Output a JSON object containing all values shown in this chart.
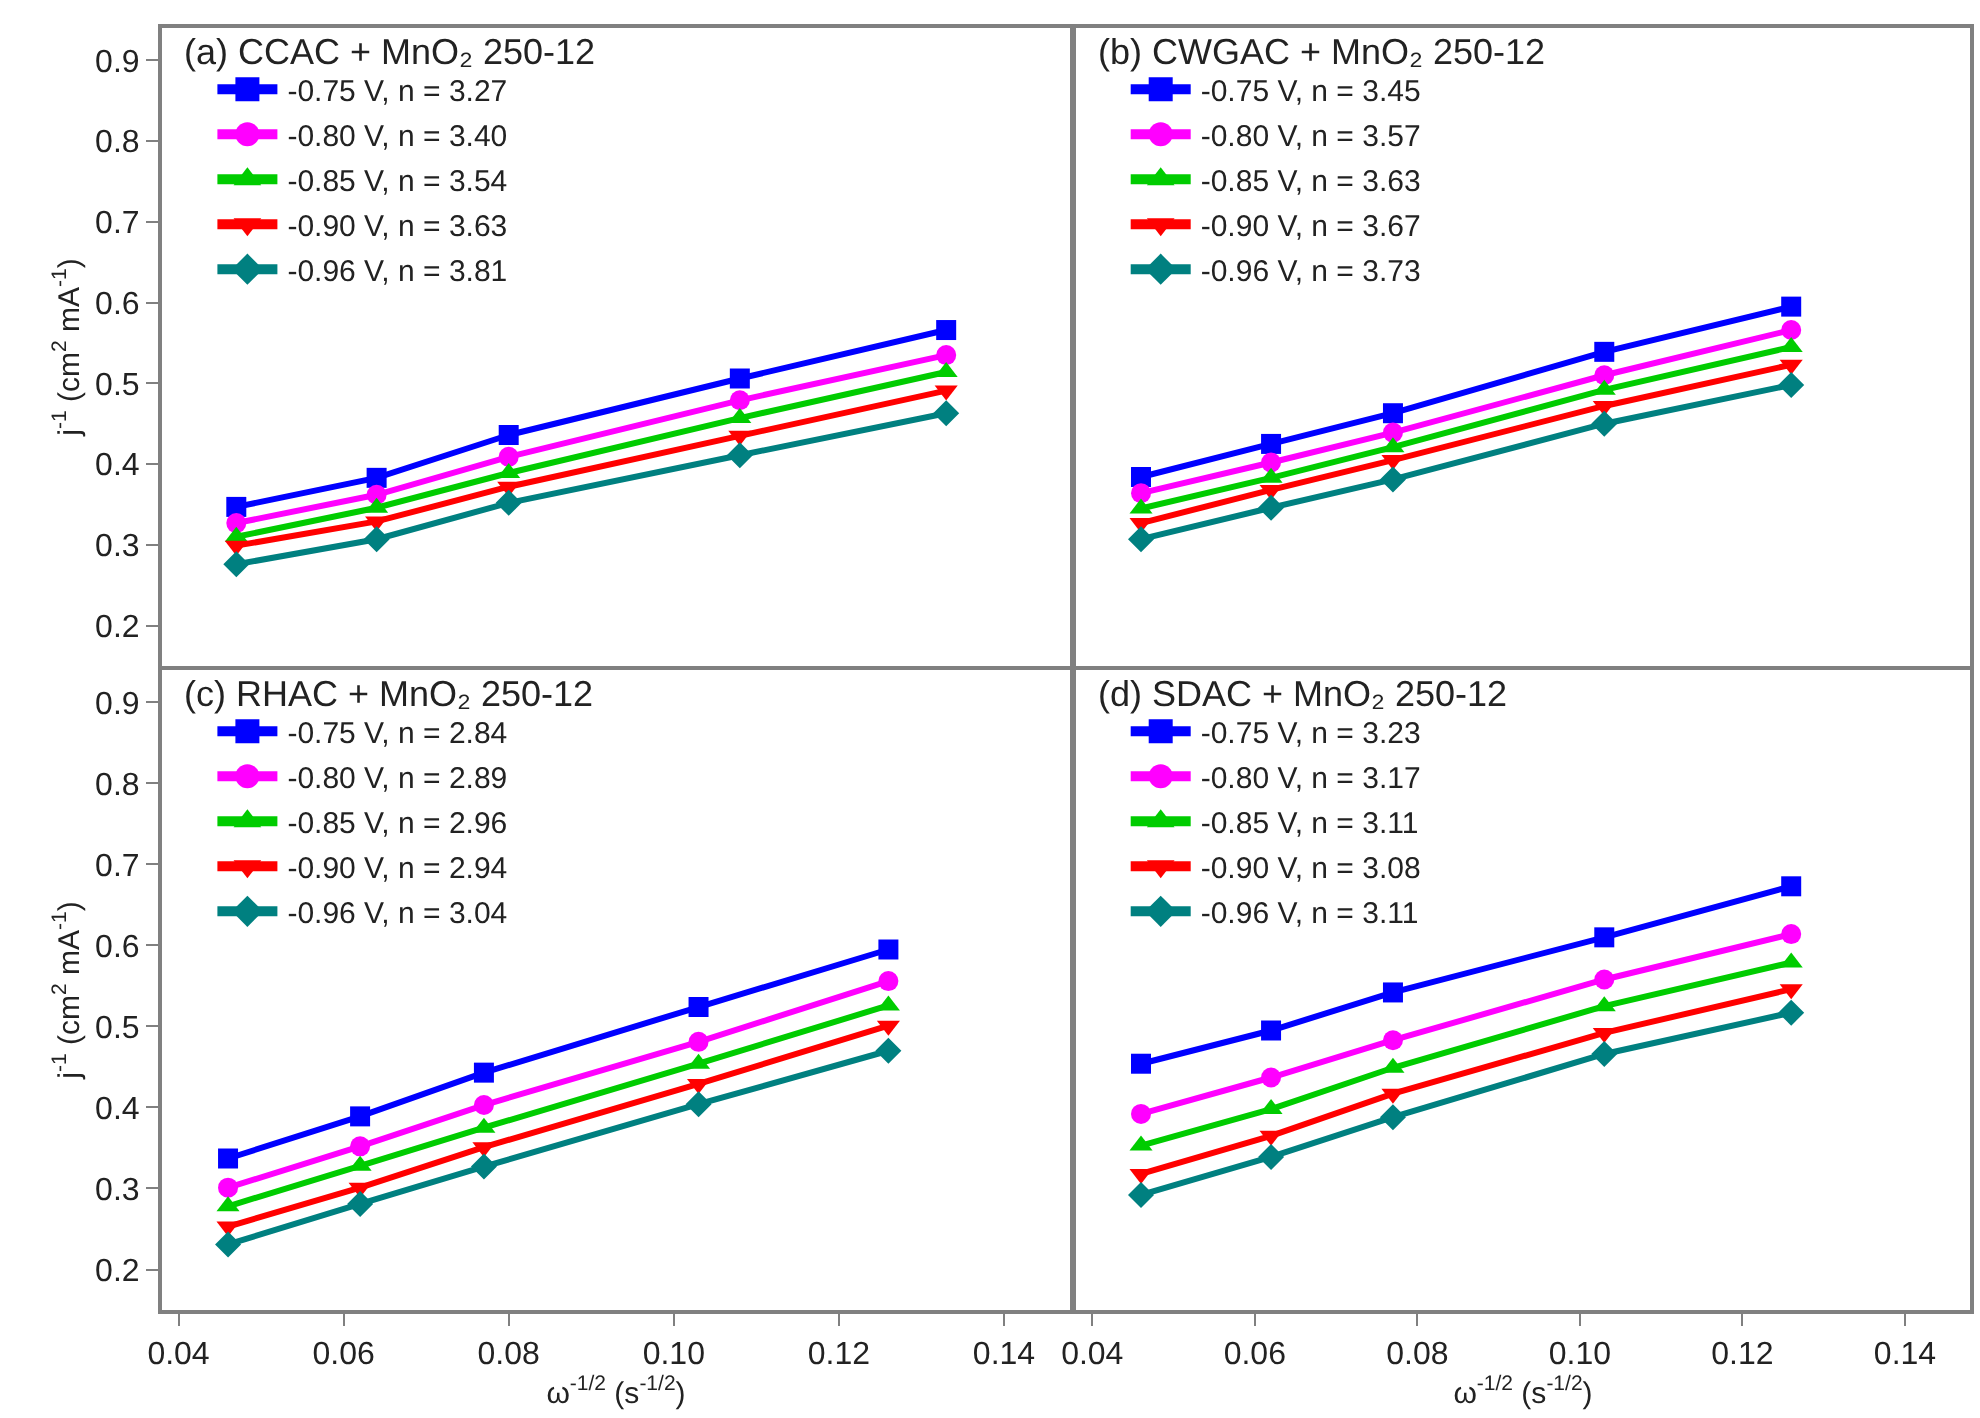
{
  "chart_data": [
    {
      "type": "line",
      "title": "(a) CCAC + MnO₂ 250-12",
      "ylabel": "j$^{-1}$ (cm$^{2}$ mA$^{-1}$)",
      "x": [
        0.047,
        0.064,
        0.08,
        0.108,
        0.133
      ],
      "xlim": [
        0.038,
        0.148
      ],
      "ylim": [
        0.15,
        0.94
      ],
      "yticks": [
        0.2,
        0.3,
        0.4,
        0.5,
        0.6,
        0.7,
        0.8,
        0.9
      ],
      "tick_labels": "y",
      "legend": "top left",
      "line_style": "solid",
      "series": [
        {
          "name": "-0.75 V, n = 3.27",
          "color": "#0000ff",
          "marker": "square",
          "values": [
            0.347,
            0.383,
            0.436,
            0.506,
            0.566
          ]
        },
        {
          "name": "-0.80 V, n = 3.40",
          "color": "#ff00ff",
          "marker": "circle",
          "values": [
            0.327,
            0.362,
            0.409,
            0.479,
            0.535
          ]
        },
        {
          "name": "-0.85 V, n = 3.54",
          "color": "#00cc00",
          "marker": "triangle",
          "values": [
            0.31,
            0.346,
            0.389,
            0.457,
            0.514
          ]
        },
        {
          "name": "-0.90 V, n = 3.63",
          "color": "#ff0000",
          "marker": "triangle-down",
          "values": [
            0.299,
            0.329,
            0.372,
            0.435,
            0.491
          ]
        },
        {
          "name": "-0.96 V, n = 3.81",
          "color": "#008080",
          "marker": "diamond",
          "values": [
            0.276,
            0.307,
            0.352,
            0.411,
            0.463
          ]
        }
      ]
    },
    {
      "type": "line",
      "title": "(b) CWGAC + MnO₂ 250-12",
      "x": [
        0.046,
        0.062,
        0.077,
        0.103,
        0.126
      ],
      "xlim": [
        0.038,
        0.148
      ],
      "ylim": [
        0.15,
        0.94
      ],
      "tick_labels": false,
      "legend": "top left",
      "line_style": "solid",
      "series": [
        {
          "name": "-0.75 V, n = 3.45",
          "color": "#0000ff",
          "marker": "square",
          "values": [
            0.384,
            0.425,
            0.463,
            0.539,
            0.595
          ]
        },
        {
          "name": "-0.80 V, n = 3.57",
          "color": "#ff00ff",
          "marker": "circle",
          "values": [
            0.364,
            0.402,
            0.439,
            0.51,
            0.566
          ]
        },
        {
          "name": "-0.85 V, n = 3.63",
          "color": "#00cc00",
          "marker": "triangle",
          "values": [
            0.345,
            0.383,
            0.421,
            0.492,
            0.545
          ]
        },
        {
          "name": "-0.90 V, n = 3.67",
          "color": "#ff0000",
          "marker": "triangle-down",
          "values": [
            0.327,
            0.368,
            0.405,
            0.472,
            0.523
          ]
        },
        {
          "name": "-0.96 V, n = 3.73",
          "color": "#008080",
          "marker": "diamond",
          "values": [
            0.307,
            0.346,
            0.381,
            0.45,
            0.498
          ]
        }
      ]
    },
    {
      "type": "line",
      "title": "(c) RHAC + MnO₂ 250-12",
      "xlabel": "ω$^{-1/2}$ (s$^{-1/2}$)",
      "ylabel": "j$^{-1}$ (cm$^{2}$ mA$^{-1}$)",
      "x": [
        0.046,
        0.062,
        0.077,
        0.103,
        0.126
      ],
      "xlim": [
        0.038,
        0.148
      ],
      "ylim": [
        0.15,
        0.94
      ],
      "xticks": [
        0.04,
        0.06,
        0.08,
        {
          "value": 0.1,
          "label": "0.10"
        },
        0.12,
        0.14
      ],
      "yticks": [
        0.2,
        0.3,
        0.4,
        0.5,
        0.6,
        0.7,
        0.8,
        0.9
      ],
      "legend": "top left",
      "line_style": "solid",
      "series": [
        {
          "name": "-0.75 V, n = 2.84",
          "color": "#0000ff",
          "marker": "square",
          "values": [
            0.337,
            0.389,
            0.443,
            0.524,
            0.595
          ]
        },
        {
          "name": "-0.80 V, n = 2.89",
          "color": "#ff00ff",
          "marker": "circle",
          "values": [
            0.301,
            0.352,
            0.403,
            0.481,
            0.556
          ]
        },
        {
          "name": "-0.85 V, n = 2.96",
          "color": "#00cc00",
          "marker": "triangle",
          "values": [
            0.278,
            0.328,
            0.375,
            0.454,
            0.526
          ]
        },
        {
          "name": "-0.90 V, n = 2.94",
          "color": "#ff0000",
          "marker": "triangle-down",
          "values": [
            0.253,
            0.301,
            0.351,
            0.429,
            0.501
          ]
        },
        {
          "name": "-0.96 V, n = 3.04",
          "color": "#008080",
          "marker": "diamond",
          "values": [
            0.231,
            0.281,
            0.327,
            0.404,
            0.47
          ]
        }
      ]
    },
    {
      "type": "line",
      "title": "(d) SDAC + MnO₂ 250-12",
      "xlabel": "ω$^{-1/2}$ (s$^{-1/2}$)",
      "x": [
        0.046,
        0.062,
        0.077,
        0.103,
        0.126
      ],
      "xlim": [
        0.038,
        0.148
      ],
      "ylim": [
        0.15,
        0.94
      ],
      "xticks": [
        0.04,
        0.06,
        0.08,
        {
          "value": 0.1,
          "label": "0.10"
        },
        0.12,
        0.14
      ],
      "tick_labels": "x",
      "legend": "top left",
      "line_style": "solid",
      "series": [
        {
          "name": "-0.75 V, n = 3.23",
          "color": "#0000ff",
          "marker": "square",
          "values": [
            0.454,
            0.495,
            0.542,
            0.61,
            0.673
          ]
        },
        {
          "name": "-0.80 V, n = 3.17",
          "color": "#ff00ff",
          "marker": "circle",
          "values": [
            0.392,
            0.437,
            0.483,
            0.558,
            0.614
          ]
        },
        {
          "name": "-0.85 V, n = 3.11",
          "color": "#00cc00",
          "marker": "triangle",
          "values": [
            0.353,
            0.398,
            0.449,
            0.525,
            0.579
          ]
        },
        {
          "name": "-0.90 V, n = 3.08",
          "color": "#ff0000",
          "marker": "triangle-down",
          "values": [
            0.318,
            0.365,
            0.417,
            0.492,
            0.546
          ]
        },
        {
          "name": "-0.96 V, n = 3.11",
          "color": "#008080",
          "marker": "diamond",
          "values": [
            0.292,
            0.339,
            0.388,
            0.466,
            0.517
          ]
        }
      ]
    }
  ]
}
